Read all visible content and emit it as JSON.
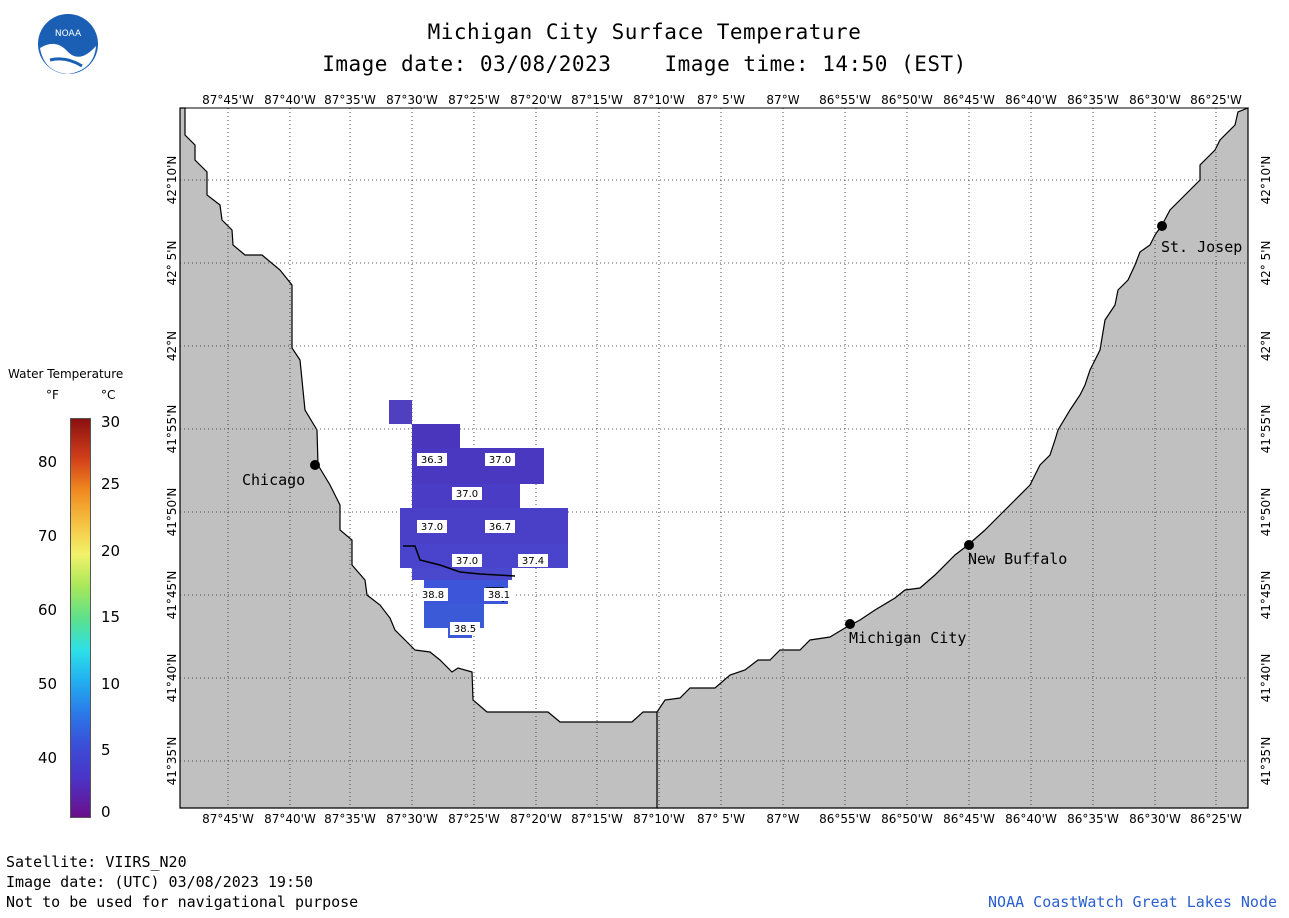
{
  "header": {
    "title": "Michigan City Surface Temperature",
    "image_date": "Image date: 03/08/2023",
    "image_time": "Image time: 14:50 (EST)"
  },
  "logo": {
    "icon": "noaa-logo-icon",
    "text": "NOAA"
  },
  "axes": {
    "lon_labels": [
      "87°45'W",
      "87°40'W",
      "87°35'W",
      "87°30'W",
      "87°25'W",
      "87°20'W",
      "87°15'W",
      "87°10'W",
      "87° 5'W",
      "87°W",
      "86°55'W",
      "86°50'W",
      "86°45'W",
      "86°40'W",
      "86°35'W",
      "86°30'W",
      "86°25'W"
    ],
    "lat_labels": [
      "42°10'N",
      "42° 5'N",
      "42°N",
      "41°55'N",
      "41°50'N",
      "41°45'N",
      "41°40'N",
      "41°35'N"
    ]
  },
  "cities": [
    {
      "name": "Chicago"
    },
    {
      "name": "St. Josep"
    },
    {
      "name": "New Buffalo"
    },
    {
      "name": "Michigan City"
    }
  ],
  "temperature_labels": [
    "36.3",
    "37.0",
    "37.0",
    "37.0",
    "36.7",
    "37.0",
    "37.4",
    "38.8",
    "38.1",
    "38.5"
  ],
  "legend": {
    "title": "Water Temperature",
    "unit_f": "°F",
    "unit_c": "°C",
    "f_ticks": [
      "80",
      "70",
      "60",
      "50",
      "40"
    ],
    "c_ticks": [
      "30",
      "25",
      "20",
      "15",
      "10",
      "5",
      "0"
    ]
  },
  "colors": {
    "land": "#c0c0c0",
    "water": "#ffffff",
    "credit": "#2b5fd0"
  },
  "footer": {
    "satellite": "Satellite: VIIRS_N20",
    "utc_date": "Image date: (UTC) 03/08/2023  19:50",
    "disclaimer": "Not to be used for navigational purpose",
    "credit": "NOAA CoastWatch Great Lakes Node"
  }
}
